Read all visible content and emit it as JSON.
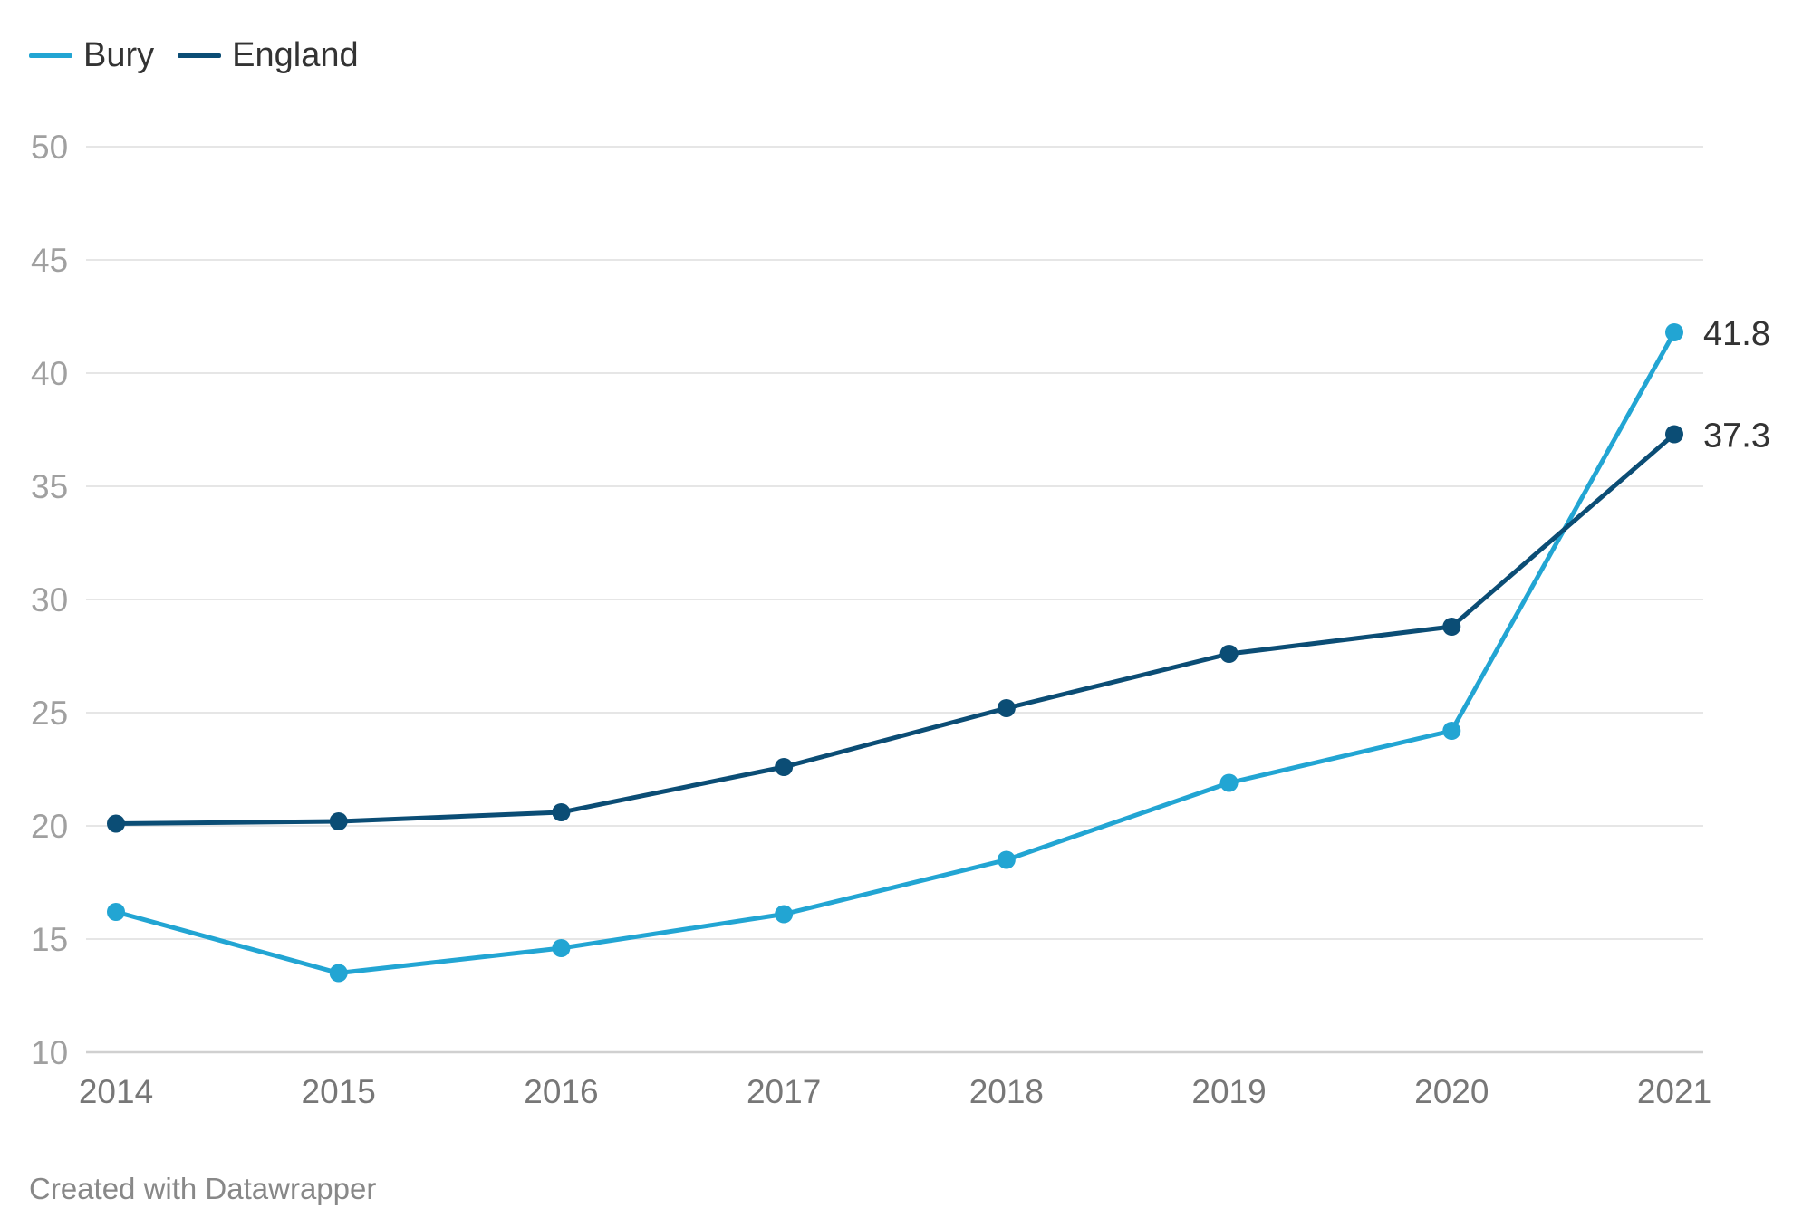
{
  "chart_data": {
    "type": "line",
    "x": [
      "2014",
      "2015",
      "2016",
      "2017",
      "2018",
      "2019",
      "2020",
      "2021"
    ],
    "series": [
      {
        "name": "Bury",
        "color": "#22a5d3",
        "values": [
          16.2,
          13.5,
          14.6,
          16.1,
          18.5,
          21.9,
          24.2,
          41.8
        ],
        "end_label": "41.8"
      },
      {
        "name": "England",
        "color": "#0b4d75",
        "values": [
          20.1,
          20.2,
          20.6,
          22.6,
          25.2,
          27.6,
          28.8,
          37.3
        ],
        "end_label": "37.3"
      }
    ],
    "yticks": [
      "10",
      "15",
      "20",
      "25",
      "30",
      "35",
      "40",
      "45",
      "50"
    ],
    "ylim": [
      10,
      50
    ],
    "grid": true,
    "legend_position": "top-left"
  },
  "footer": {
    "credit": "Created with Datawrapper"
  }
}
